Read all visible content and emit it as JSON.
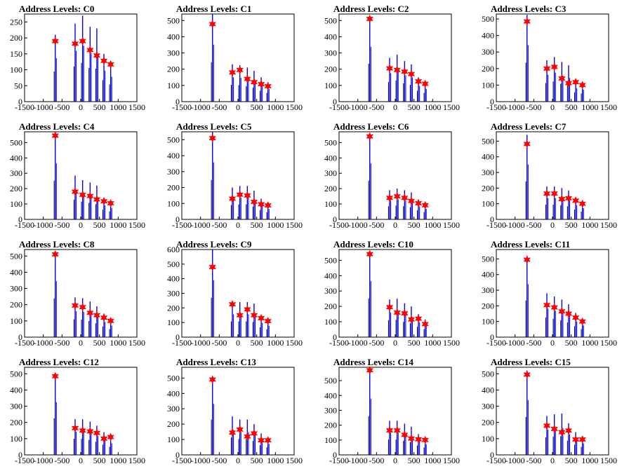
{
  "chart_data": [
    {
      "type": "bar",
      "title": "Address Levels: C0",
      "xlim": [
        -1500,
        1500
      ],
      "ylim": [
        0,
        275
      ],
      "xticks": [
        -1500,
        -1000,
        -500,
        0,
        500,
        1000,
        1500
      ],
      "yticks": [
        0,
        50,
        100,
        150,
        200,
        250
      ],
      "peaks": [
        {
          "x": -680,
          "top": 210,
          "marker": 190
        },
        {
          "x": -150,
          "top": 245,
          "marker": 182
        },
        {
          "x": 50,
          "top": 270,
          "marker": 190
        },
        {
          "x": 250,
          "top": 235,
          "marker": 162
        },
        {
          "x": 430,
          "top": 230,
          "marker": 145
        },
        {
          "x": 620,
          "top": 150,
          "marker": 128
        },
        {
          "x": 800,
          "top": 120,
          "marker": 117
        }
      ],
      "line_color": "#0000ff",
      "marker_color": "#ff0000"
    },
    {
      "type": "bar",
      "title": "Address Levels: C1",
      "xlim": [
        -1500,
        1500
      ],
      "ylim": [
        0,
        540
      ],
      "xticks": [
        -1500,
        -1000,
        -500,
        0,
        500,
        1000,
        1500
      ],
      "yticks": [
        0,
        100,
        200,
        300,
        400,
        500
      ],
      "peaks": [
        {
          "x": -680,
          "top": 540,
          "marker": 478
        },
        {
          "x": -150,
          "top": 230,
          "marker": 180
        },
        {
          "x": 50,
          "top": 225,
          "marker": 195
        },
        {
          "x": 250,
          "top": 210,
          "marker": 140
        },
        {
          "x": 430,
          "top": 190,
          "marker": 120
        },
        {
          "x": 620,
          "top": 150,
          "marker": 108
        },
        {
          "x": 800,
          "top": 120,
          "marker": 95
        }
      ],
      "line_color": "#0000ff",
      "marker_color": "#ff0000"
    },
    {
      "type": "bar",
      "title": "Address Levels: C2",
      "xlim": [
        -1500,
        1500
      ],
      "ylim": [
        0,
        540
      ],
      "xticks": [
        -1500,
        -1000,
        -500,
        0,
        500,
        1000,
        1500
      ],
      "yticks": [
        0,
        100,
        200,
        300,
        400,
        500
      ],
      "peaks": [
        {
          "x": -680,
          "top": 520,
          "marker": 510
        },
        {
          "x": -150,
          "top": 270,
          "marker": 205
        },
        {
          "x": 50,
          "top": 290,
          "marker": 195
        },
        {
          "x": 250,
          "top": 250,
          "marker": 185
        },
        {
          "x": 430,
          "top": 230,
          "marker": 170
        },
        {
          "x": 620,
          "top": 150,
          "marker": 125
        },
        {
          "x": 800,
          "top": 120,
          "marker": 110
        }
      ],
      "line_color": "#0000ff",
      "marker_color": "#ff0000"
    },
    {
      "type": "bar",
      "title": "Address Levels: C3",
      "xlim": [
        -1500,
        1500
      ],
      "ylim": [
        0,
        530
      ],
      "xticks": [
        -1500,
        -1000,
        -500,
        0,
        500,
        1000,
        1500
      ],
      "yticks": [
        0,
        100,
        200,
        300,
        400,
        500
      ],
      "peaks": [
        {
          "x": -680,
          "top": 525,
          "marker": 485
        },
        {
          "x": -150,
          "top": 250,
          "marker": 200
        },
        {
          "x": 50,
          "top": 270,
          "marker": 210
        },
        {
          "x": 250,
          "top": 240,
          "marker": 140
        },
        {
          "x": 430,
          "top": 220,
          "marker": 112
        },
        {
          "x": 620,
          "top": 125,
          "marker": 118
        },
        {
          "x": 800,
          "top": 110,
          "marker": 100
        }
      ],
      "line_color": "#0000ff",
      "marker_color": "#ff0000"
    },
    {
      "type": "bar",
      "title": "Address Levels: C4",
      "xlim": [
        -1500,
        1500
      ],
      "ylim": [
        0,
        570
      ],
      "xticks": [
        -1500,
        -1000,
        -500,
        0,
        500,
        1000,
        1500
      ],
      "yticks": [
        0,
        100,
        200,
        300,
        400,
        500
      ],
      "peaks": [
        {
          "x": -680,
          "top": 560,
          "marker": 545
        },
        {
          "x": -150,
          "top": 285,
          "marker": 180
        },
        {
          "x": 50,
          "top": 255,
          "marker": 160
        },
        {
          "x": 250,
          "top": 240,
          "marker": 152
        },
        {
          "x": 430,
          "top": 220,
          "marker": 130
        },
        {
          "x": 620,
          "top": 140,
          "marker": 118
        },
        {
          "x": 800,
          "top": 115,
          "marker": 105
        }
      ],
      "line_color": "#0000ff",
      "marker_color": "#ff0000"
    },
    {
      "type": "bar",
      "title": "Address Levels: C5",
      "xlim": [
        -1500,
        1500
      ],
      "ylim": [
        0,
        550
      ],
      "xticks": [
        -1500,
        -1000,
        -500,
        0,
        500,
        1000,
        1500
      ],
      "yticks": [
        0,
        100,
        200,
        300,
        400,
        500
      ],
      "peaks": [
        {
          "x": -680,
          "top": 550,
          "marker": 510
        },
        {
          "x": -150,
          "top": 200,
          "marker": 130
        },
        {
          "x": 50,
          "top": 210,
          "marker": 155
        },
        {
          "x": 250,
          "top": 210,
          "marker": 150
        },
        {
          "x": 430,
          "top": 180,
          "marker": 110
        },
        {
          "x": 620,
          "top": 130,
          "marker": 95
        },
        {
          "x": 800,
          "top": 100,
          "marker": 88
        }
      ],
      "line_color": "#0000ff",
      "marker_color": "#ff0000"
    },
    {
      "type": "bar",
      "title": "Address Levels: C6",
      "xlim": [
        -1500,
        1500
      ],
      "ylim": [
        0,
        570
      ],
      "xticks": [
        -1500,
        -1000,
        -500,
        0,
        500,
        1000,
        1500
      ],
      "yticks": [
        0,
        100,
        200,
        300,
        400,
        500
      ],
      "peaks": [
        {
          "x": -680,
          "top": 560,
          "marker": 540
        },
        {
          "x": -150,
          "top": 190,
          "marker": 140
        },
        {
          "x": 50,
          "top": 200,
          "marker": 150
        },
        {
          "x": 250,
          "top": 190,
          "marker": 140
        },
        {
          "x": 430,
          "top": 175,
          "marker": 120
        },
        {
          "x": 620,
          "top": 130,
          "marker": 105
        },
        {
          "x": 800,
          "top": 105,
          "marker": 92
        }
      ],
      "line_color": "#0000ff",
      "marker_color": "#ff0000"
    },
    {
      "type": "bar",
      "title": "Address Levels: C7",
      "xlim": [
        -1500,
        1500
      ],
      "ylim": [
        0,
        560
      ],
      "xticks": [
        -1500,
        -1000,
        -500,
        0,
        500,
        1000,
        1500
      ],
      "yticks": [
        0,
        100,
        200,
        300,
        400,
        500
      ],
      "peaks": [
        {
          "x": -680,
          "top": 540,
          "marker": 482
        },
        {
          "x": -150,
          "top": 210,
          "marker": 165
        },
        {
          "x": 50,
          "top": 210,
          "marker": 165
        },
        {
          "x": 250,
          "top": 200,
          "marker": 130
        },
        {
          "x": 430,
          "top": 185,
          "marker": 135
        },
        {
          "x": 620,
          "top": 140,
          "marker": 120
        },
        {
          "x": 800,
          "top": 110,
          "marker": 100
        }
      ],
      "line_color": "#0000ff",
      "marker_color": "#ff0000"
    },
    {
      "type": "bar",
      "title": "Address Levels: C8",
      "xlim": [
        -1500,
        1500
      ],
      "ylim": [
        0,
        540
      ],
      "xticks": [
        -1500,
        -1000,
        -500,
        0,
        500,
        1000,
        1500
      ],
      "yticks": [
        0,
        100,
        200,
        300,
        400,
        500
      ],
      "peaks": [
        {
          "x": -680,
          "top": 530,
          "marker": 510
        },
        {
          "x": -150,
          "top": 245,
          "marker": 195
        },
        {
          "x": 50,
          "top": 240,
          "marker": 185
        },
        {
          "x": 250,
          "top": 220,
          "marker": 150
        },
        {
          "x": 430,
          "top": 190,
          "marker": 135
        },
        {
          "x": 620,
          "top": 145,
          "marker": 120
        },
        {
          "x": 800,
          "top": 110,
          "marker": 100
        }
      ],
      "line_color": "#0000ff",
      "marker_color": "#ff0000"
    },
    {
      "type": "bar",
      "title": "Address Levels: C9",
      "xlim": [
        -1500,
        1500
      ],
      "ylim": [
        0,
        600
      ],
      "xticks": [
        -1500,
        -1000,
        -500,
        0,
        500,
        1000,
        1500
      ],
      "yticks": [
        0,
        100,
        200,
        300,
        400,
        500,
        600
      ],
      "peaks": [
        {
          "x": -680,
          "top": 600,
          "marker": 480
        },
        {
          "x": -150,
          "top": 240,
          "marker": 225
        },
        {
          "x": 50,
          "top": 240,
          "marker": 150
        },
        {
          "x": 250,
          "top": 240,
          "marker": 190
        },
        {
          "x": 430,
          "top": 230,
          "marker": 150
        },
        {
          "x": 620,
          "top": 150,
          "marker": 130
        },
        {
          "x": 800,
          "top": 120,
          "marker": 110
        }
      ],
      "line_color": "#0000ff",
      "marker_color": "#ff0000"
    },
    {
      "type": "bar",
      "title": "Address Levels: C10",
      "xlim": [
        -1500,
        1500
      ],
      "ylim": [
        0,
        570
      ],
      "xticks": [
        -1500,
        -1000,
        -500,
        0,
        500,
        1000,
        1500
      ],
      "yticks": [
        0,
        100,
        200,
        300,
        400,
        500
      ],
      "peaks": [
        {
          "x": -680,
          "top": 560,
          "marker": 540
        },
        {
          "x": -150,
          "top": 245,
          "marker": 195
        },
        {
          "x": 50,
          "top": 250,
          "marker": 160
        },
        {
          "x": 250,
          "top": 220,
          "marker": 155
        },
        {
          "x": 430,
          "top": 200,
          "marker": 115
        },
        {
          "x": 620,
          "top": 150,
          "marker": 120
        },
        {
          "x": 800,
          "top": 115,
          "marker": 85
        }
      ],
      "line_color": "#0000ff",
      "marker_color": "#ff0000"
    },
    {
      "type": "bar",
      "title": "Address Levels: C11",
      "xlim": [
        -1500,
        1500
      ],
      "ylim": [
        0,
        560
      ],
      "xticks": [
        -1500,
        -1000,
        -500,
        0,
        500,
        1000,
        1500
      ],
      "yticks": [
        0,
        100,
        200,
        300,
        400,
        500
      ],
      "peaks": [
        {
          "x": -680,
          "top": 520,
          "marker": 495
        },
        {
          "x": -150,
          "top": 280,
          "marker": 205
        },
        {
          "x": 50,
          "top": 260,
          "marker": 190
        },
        {
          "x": 250,
          "top": 240,
          "marker": 165
        },
        {
          "x": 430,
          "top": 210,
          "marker": 150
        },
        {
          "x": 620,
          "top": 155,
          "marker": 125
        },
        {
          "x": 800,
          "top": 115,
          "marker": 100
        }
      ],
      "line_color": "#0000ff",
      "marker_color": "#ff0000"
    },
    {
      "type": "bar",
      "title": "Address Levels: C12",
      "xlim": [
        -1500,
        1500
      ],
      "ylim": [
        0,
        540
      ],
      "xticks": [
        -1500,
        -1000,
        -500,
        0,
        500,
        1000,
        1500
      ],
      "yticks": [
        0,
        100,
        200,
        300,
        400,
        500
      ],
      "peaks": [
        {
          "x": -680,
          "top": 500,
          "marker": 485
        },
        {
          "x": -150,
          "top": 220,
          "marker": 165
        },
        {
          "x": 50,
          "top": 220,
          "marker": 150
        },
        {
          "x": 250,
          "top": 205,
          "marker": 145
        },
        {
          "x": 430,
          "top": 180,
          "marker": 135
        },
        {
          "x": 620,
          "top": 140,
          "marker": 100
        },
        {
          "x": 800,
          "top": 110,
          "marker": 110
        }
      ],
      "line_color": "#0000ff",
      "marker_color": "#ff0000"
    },
    {
      "type": "bar",
      "title": "Address Levels: C13",
      "xlim": [
        -1500,
        1500
      ],
      "ylim": [
        0,
        570
      ],
      "xticks": [
        -1500,
        -1000,
        -500,
        0,
        500,
        1000,
        1500
      ],
      "yticks": [
        0,
        100,
        200,
        300,
        400,
        500
      ],
      "peaks": [
        {
          "x": -680,
          "top": 510,
          "marker": 490
        },
        {
          "x": -150,
          "top": 250,
          "marker": 145
        },
        {
          "x": 50,
          "top": 230,
          "marker": 165
        },
        {
          "x": 250,
          "top": 230,
          "marker": 120
        },
        {
          "x": 430,
          "top": 200,
          "marker": 140
        },
        {
          "x": 620,
          "top": 140,
          "marker": 95
        },
        {
          "x": 800,
          "top": 110,
          "marker": 95
        }
      ],
      "line_color": "#0000ff",
      "marker_color": "#ff0000"
    },
    {
      "type": "bar",
      "title": "Address Levels: C14",
      "xlim": [
        -1500,
        1500
      ],
      "ylim": [
        0,
        590
      ],
      "xticks": [
        -1500,
        -1000,
        -500,
        0,
        500,
        1000,
        1500
      ],
      "yticks": [
        0,
        100,
        200,
        300,
        400,
        500
      ],
      "peaks": [
        {
          "x": -680,
          "top": 580,
          "marker": 570
        },
        {
          "x": -150,
          "top": 230,
          "marker": 165
        },
        {
          "x": 50,
          "top": 230,
          "marker": 165
        },
        {
          "x": 250,
          "top": 210,
          "marker": 135
        },
        {
          "x": 430,
          "top": 190,
          "marker": 110
        },
        {
          "x": 620,
          "top": 140,
          "marker": 105
        },
        {
          "x": 800,
          "top": 110,
          "marker": 100
        }
      ],
      "line_color": "#0000ff",
      "marker_color": "#ff0000"
    },
    {
      "type": "bar",
      "title": "Address Levels: C15",
      "xlim": [
        -1500,
        1500
      ],
      "ylim": [
        0,
        540
      ],
      "xticks": [
        -1500,
        -1000,
        -500,
        0,
        500,
        1000,
        1500
      ],
      "yticks": [
        0,
        100,
        200,
        300,
        400,
        500
      ],
      "peaks": [
        {
          "x": -680,
          "top": 520,
          "marker": 495
        },
        {
          "x": -150,
          "top": 240,
          "marker": 180
        },
        {
          "x": 50,
          "top": 250,
          "marker": 160
        },
        {
          "x": 250,
          "top": 255,
          "marker": 140
        },
        {
          "x": 430,
          "top": 195,
          "marker": 150
        },
        {
          "x": 620,
          "top": 140,
          "marker": 95
        },
        {
          "x": 800,
          "top": 110,
          "marker": 95
        }
      ],
      "line_color": "#0000ff",
      "marker_color": "#ff0000"
    }
  ]
}
